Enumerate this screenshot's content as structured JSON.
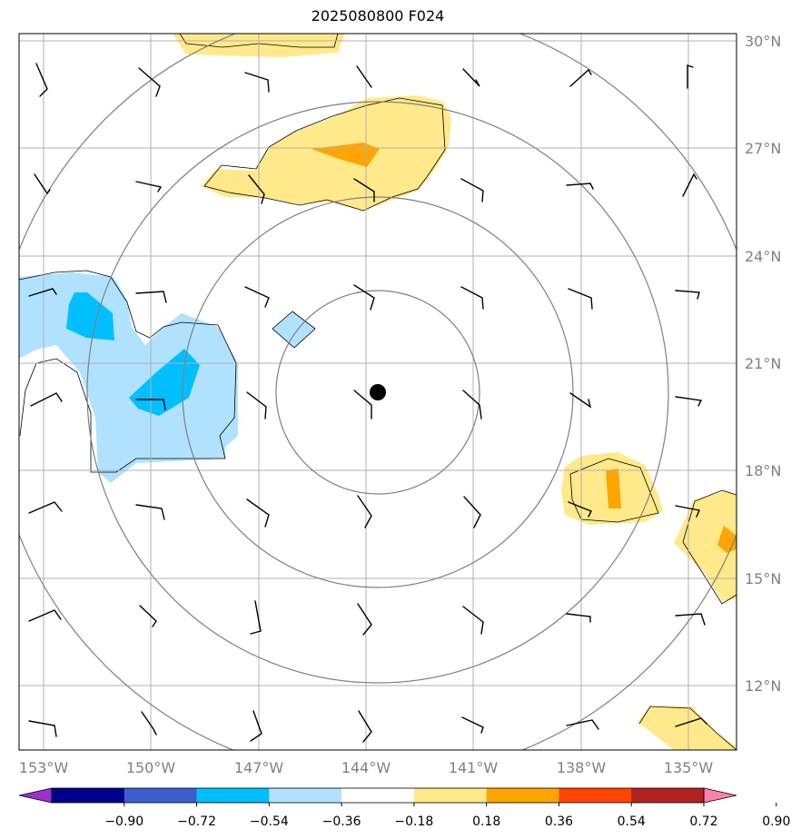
{
  "title": "2025080800 F024",
  "lon_labels": [
    "153°W",
    "150°W",
    "147°W",
    "144°W",
    "141°W",
    "138°W",
    "135°W"
  ],
  "lat_labels": [
    "30°N",
    "27°N",
    "24°N",
    "21°N",
    "18°N",
    "15°N",
    "12°N"
  ],
  "colorbar": {
    "ticks": [
      "−0.90",
      "−0.72",
      "−0.54",
      "−0.36",
      "−0.18",
      "0.18",
      "0.36",
      "0.54",
      "0.72",
      "0.90"
    ],
    "colors": [
      "#9932cc",
      "#00008b",
      "#3a5fcd",
      "#00bfff",
      "#b0e2ff",
      "#ffffff",
      "#ffe98a",
      "#ffa500",
      "#ff4500",
      "#b22222",
      "#ff82ab"
    ]
  },
  "colors": {
    "positive_light": "#ffe98a",
    "positive_mid": "#ffa500",
    "negative_light": "#b0e2ff",
    "negative_mid": "#00bfff",
    "grid": "#b0b0b0",
    "range_rings": "#808080"
  },
  "center_marker": "storm-center-dot"
}
